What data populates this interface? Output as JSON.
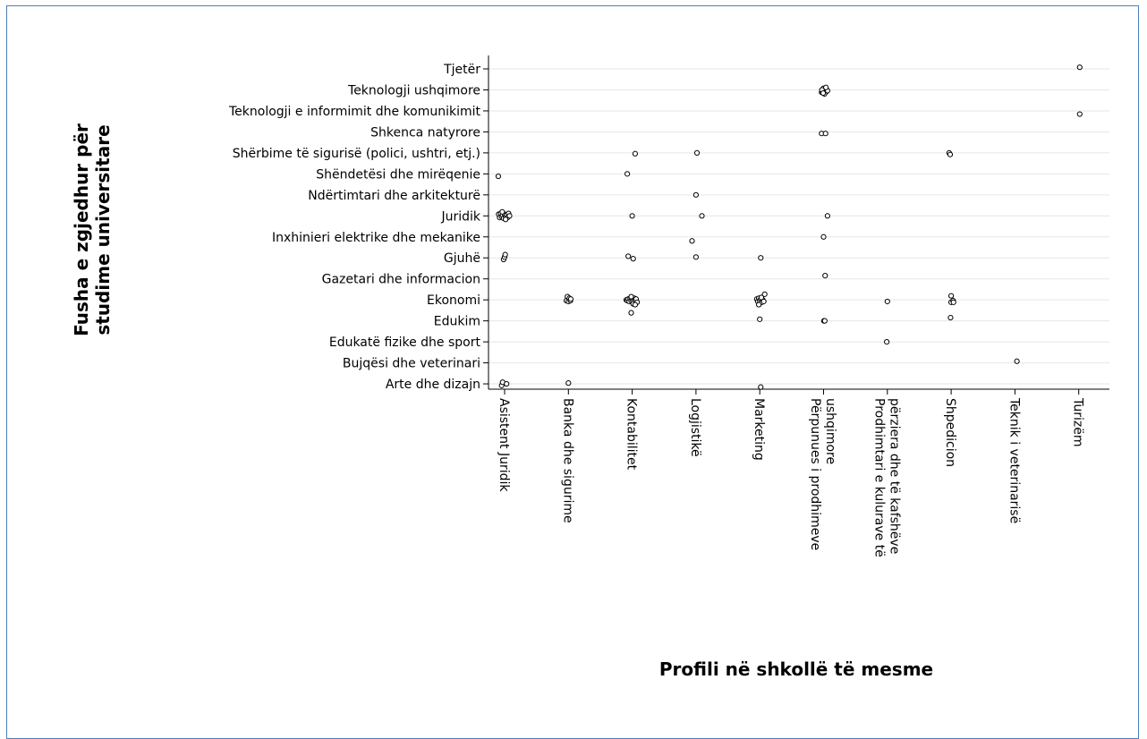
{
  "chart_data": {
    "type": "scatter",
    "xlabel": "Profili në shkollë të mesme",
    "ylabel": "Fusha e zgjedhur për studime universitare",
    "ylabel_lines": [
      "Fusha e zgjedhur për",
      "studime universitare"
    ],
    "x_categories": [
      [
        "Asistent Juridik"
      ],
      [
        "Banka dhe sigurime"
      ],
      [
        "Kontabilitet"
      ],
      [
        "Logjistikë"
      ],
      [
        "Marketing"
      ],
      [
        "Përpunues i prodhimeve",
        "ushqimore"
      ],
      [
        "Prodhimtari e kulurave të",
        "përziera dhe të kafshëve"
      ],
      [
        "Shpedicion"
      ],
      [
        "Teknik i veterinarisë"
      ],
      [
        "Turizëm"
      ]
    ],
    "y_categories": [
      "Tjetër",
      "Teknologji ushqimore",
      "Teknologji e informimit dhe komunikimit",
      "Shkenca natyrore",
      "Shërbime të sigurisë (polici, ushtri, etj.)",
      "Shëndetësi dhe mirëqenie",
      "Ndërtimtari dhe arkitekturë",
      "Juridik",
      "Inxhinieri elektrike dhe mekanike",
      "Gjuhë",
      "Gazetari dhe informacion",
      "Ekonomi",
      "Edukim",
      "Edukatë fizike dhe sport",
      "Bujqësi dhe veterinari",
      "Arte dhe dizajn"
    ],
    "grid": "horizontal",
    "points": [
      [
        "Asistent Juridik",
        "Juridik",
        -0.3,
        -0.1
      ],
      [
        "Asistent Juridik",
        "Juridik",
        -0.25,
        0.1
      ],
      [
        "Asistent Juridik",
        "Juridik",
        -0.2,
        -0.15
      ],
      [
        "Asistent Juridik",
        "Juridik",
        -0.15,
        0.05
      ],
      [
        "Asistent Juridik",
        "Juridik",
        -0.1,
        -0.05
      ],
      [
        "Asistent Juridik",
        "Juridik",
        -0.05,
        0.15
      ],
      [
        "Asistent Juridik",
        "Juridik",
        0.0,
        -0.1
      ],
      [
        "Asistent Juridik",
        "Juridik",
        0.05,
        0.05
      ],
      [
        "Asistent Juridik",
        "Juridik",
        0.1,
        -0.05
      ],
      [
        "Asistent Juridik",
        "Juridik",
        0.15,
        0.1
      ],
      [
        "Asistent Juridik",
        "Juridik",
        0.2,
        -0.15
      ],
      [
        "Asistent Juridik",
        "Juridik",
        -0.12,
        -0.25
      ],
      [
        "Asistent Juridik",
        "Juridik",
        0.05,
        0.22
      ],
      [
        "Asistent Juridik",
        "Juridik",
        0.25,
        0.0
      ],
      [
        "Asistent Juridik",
        "Shëndetësi dhe mirëqenie",
        -0.32,
        0.15
      ],
      [
        "Asistent Juridik",
        "Gjuhë",
        -0.05,
        0.1
      ],
      [
        "Asistent Juridik",
        "Gjuhë",
        0.0,
        -0.05
      ],
      [
        "Asistent Juridik",
        "Gjuhë",
        0.03,
        -0.2
      ],
      [
        "Asistent Juridik",
        "Arte dhe dizajn",
        -0.15,
        0.1
      ],
      [
        "Asistent Juridik",
        "Arte dhe dizajn",
        -0.1,
        -0.1
      ],
      [
        "Asistent Juridik",
        "Arte dhe dizajn",
        0.1,
        0.0
      ],
      [
        "Banka dhe sigurime",
        "Ekonomi",
        -0.1,
        0.05
      ],
      [
        "Banka dhe sigurime",
        "Ekonomi",
        -0.05,
        -0.2
      ],
      [
        "Banka dhe sigurime",
        "Ekonomi",
        0.0,
        0.1
      ],
      [
        "Banka dhe sigurime",
        "Ekonomi",
        0.05,
        -0.1
      ],
      [
        "Banka dhe sigurime",
        "Ekonomi",
        0.1,
        0.05
      ],
      [
        "Banka dhe sigurime",
        "Ekonomi",
        0.12,
        -0.05
      ],
      [
        "Banka dhe sigurime",
        "Arte dhe dizajn",
        0.0,
        -0.05
      ],
      [
        "Kontabilitet",
        "Ekonomi",
        -0.3,
        0.0
      ],
      [
        "Kontabilitet",
        "Ekonomi",
        -0.25,
        0.05
      ],
      [
        "Kontabilitet",
        "Ekonomi",
        -0.2,
        -0.05
      ],
      [
        "Kontabilitet",
        "Ekonomi",
        -0.15,
        0.1
      ],
      [
        "Kontabilitet",
        "Ekonomi",
        -0.1,
        -0.1
      ],
      [
        "Kontabilitet",
        "Ekonomi",
        -0.05,
        0.05
      ],
      [
        "Kontabilitet",
        "Ekonomi",
        0.0,
        -0.05
      ],
      [
        "Kontabilitet",
        "Ekonomi",
        0.05,
        0.1
      ],
      [
        "Kontabilitet",
        "Ekonomi",
        0.1,
        -0.1
      ],
      [
        "Kontabilitet",
        "Ekonomi",
        0.15,
        0.05
      ],
      [
        "Kontabilitet",
        "Ekonomi",
        0.2,
        -0.05
      ],
      [
        "Kontabilitet",
        "Ekonomi",
        0.25,
        0.15
      ],
      [
        "Kontabilitet",
        "Ekonomi",
        0.05,
        0.25
      ],
      [
        "Kontabilitet",
        "Ekonomi",
        -0.05,
        -0.2
      ],
      [
        "Kontabilitet",
        "Ekonomi",
        0.15,
        0.3
      ],
      [
        "Kontabilitet",
        "Shërbime të sigurisë (polici, ushtri, etj.)",
        0.15,
        0.05
      ],
      [
        "Kontabilitet",
        "Shëndetësi dhe mirëqenie",
        -0.25,
        0.0
      ],
      [
        "Kontabilitet",
        "Juridik",
        0.0,
        0.0
      ],
      [
        "Kontabilitet",
        "Gjuhë",
        -0.2,
        -0.1
      ],
      [
        "Kontabilitet",
        "Gjuhë",
        0.05,
        0.05
      ],
      [
        "Kontabilitet",
        "Edukim",
        -0.05,
        -0.5
      ],
      [
        "Logjistikë",
        "Shërbime të sigurisë (polici, ushtri, etj.)",
        0.05,
        0.0
      ],
      [
        "Logjistikë",
        "Ndërtimtari dhe arkitekturë",
        0.0,
        0.0
      ],
      [
        "Logjistikë",
        "Juridik",
        0.3,
        0.0
      ],
      [
        "Logjistikë",
        "Inxhinieri elektrike dhe mekanike",
        -0.2,
        0.25
      ],
      [
        "Logjistikë",
        "Gjuhë",
        0.0,
        -0.05
      ],
      [
        "Marketing",
        "Ekonomi",
        -0.15,
        -0.05
      ],
      [
        "Marketing",
        "Ekonomi",
        -0.1,
        0.1
      ],
      [
        "Marketing",
        "Ekonomi",
        -0.05,
        -0.1
      ],
      [
        "Marketing",
        "Ekonomi",
        0.0,
        0.05
      ],
      [
        "Marketing",
        "Ekonomi",
        0.05,
        -0.05
      ],
      [
        "Marketing",
        "Ekonomi",
        0.1,
        0.15
      ],
      [
        "Marketing",
        "Ekonomi",
        0.15,
        0.0
      ],
      [
        "Marketing",
        "Ekonomi",
        0.2,
        0.1
      ],
      [
        "Marketing",
        "Ekonomi",
        0.25,
        -0.35
      ],
      [
        "Marketing",
        "Ekonomi",
        -0.05,
        0.3
      ],
      [
        "Marketing",
        "Ekonomi",
        0.08,
        -0.15
      ],
      [
        "Marketing",
        "Gjuhë",
        0.05,
        0.0
      ],
      [
        "Marketing",
        "Edukim",
        0.0,
        -0.1
      ],
      [
        "Marketing",
        "Arte dhe dizajn",
        0.05,
        0.2
      ],
      [
        "Përpunues i prodhimeve ushqimore",
        "Teknologji ushqimore",
        -0.1,
        0.15
      ],
      [
        "Përpunues i prodhimeve ushqimore",
        "Teknologji ushqimore",
        -0.05,
        0.1
      ],
      [
        "Përpunues i prodhimeve ushqimore",
        "Teknologji ushqimore",
        0.0,
        0.05
      ],
      [
        "Përpunues i prodhimeve ushqimore",
        "Teknologji ushqimore",
        0.05,
        0.0
      ],
      [
        "Përpunues i prodhimeve ushqimore",
        "Teknologji ushqimore",
        0.1,
        -0.05
      ],
      [
        "Përpunues i prodhimeve ushqimore",
        "Teknologji ushqimore",
        0.15,
        0.1
      ],
      [
        "Përpunues i prodhimeve ushqimore",
        "Teknologji ushqimore",
        0.0,
        -0.1
      ],
      [
        "Përpunues i prodhimeve ushqimore",
        "Teknologji ushqimore",
        -0.08,
        0.0
      ],
      [
        "Përpunues i prodhimeve ushqimore",
        "Teknologji ushqimore",
        0.2,
        0.05
      ],
      [
        "Përpunues i prodhimeve ushqimore",
        "Teknologji ushqimore",
        0.05,
        0.25
      ],
      [
        "Përpunues i prodhimeve ushqimore",
        "Teknologji ushqimore",
        -0.02,
        0.2
      ],
      [
        "Përpunues i prodhimeve ushqimore",
        "Teknologji ushqimore",
        0.12,
        -0.15
      ],
      [
        "Përpunues i prodhimeve ushqimore",
        "Shkenca natyrore",
        -0.1,
        0.1
      ],
      [
        "Përpunues i prodhimeve ushqimore",
        "Shkenca natyrore",
        0.1,
        0.1
      ],
      [
        "Përpunues i prodhimeve ushqimore",
        "Juridik",
        0.2,
        0.0
      ],
      [
        "Përpunues i prodhimeve ushqimore",
        "Inxhinieri elektrike dhe mekanike",
        0.0,
        0.0
      ],
      [
        "Përpunues i prodhimeve ushqimore",
        "Gazetari dhe informacion",
        0.08,
        -0.2
      ],
      [
        "Përpunues i prodhimeve ushqimore",
        "Edukim",
        0.02,
        0.0
      ],
      [
        "Përpunues i prodhimeve ushqimore",
        "Edukim",
        0.06,
        0.0
      ],
      [
        "Prodhimtari e kulurave të përziera dhe të kafshëve",
        "Ekonomi",
        0.0,
        0.1
      ],
      [
        "Prodhimtari e kulurave të përziera dhe të kafshëve",
        "Edukatë fizike dhe sport",
        -0.03,
        0.0
      ],
      [
        "Shpedicion",
        "Shërbime të sigurisë (polici, ushtri, etj.)",
        -0.1,
        0.0
      ],
      [
        "Shpedicion",
        "Shërbime të sigurisë (polici, ushtri, etj.)",
        -0.05,
        0.1
      ],
      [
        "Shpedicion",
        "Ekonomi",
        0.0,
        0.15
      ],
      [
        "Shpedicion",
        "Ekonomi",
        0.1,
        0.05
      ],
      [
        "Shpedicion",
        "Ekonomi",
        0.12,
        0.15
      ],
      [
        "Shpedicion",
        "Ekonomi",
        0.0,
        -0.25
      ],
      [
        "Shpedicion",
        "Edukim",
        -0.03,
        -0.2
      ],
      [
        "Teknik i veterinarisë",
        "Bujqësi dhe veterinari",
        0.1,
        -0.1
      ],
      [
        "Turizëm",
        "Tjetër",
        0.05,
        -0.1
      ],
      [
        "Turizëm",
        "Teknologji e informimit dhe komunikimit",
        0.05,
        0.2
      ]
    ]
  }
}
